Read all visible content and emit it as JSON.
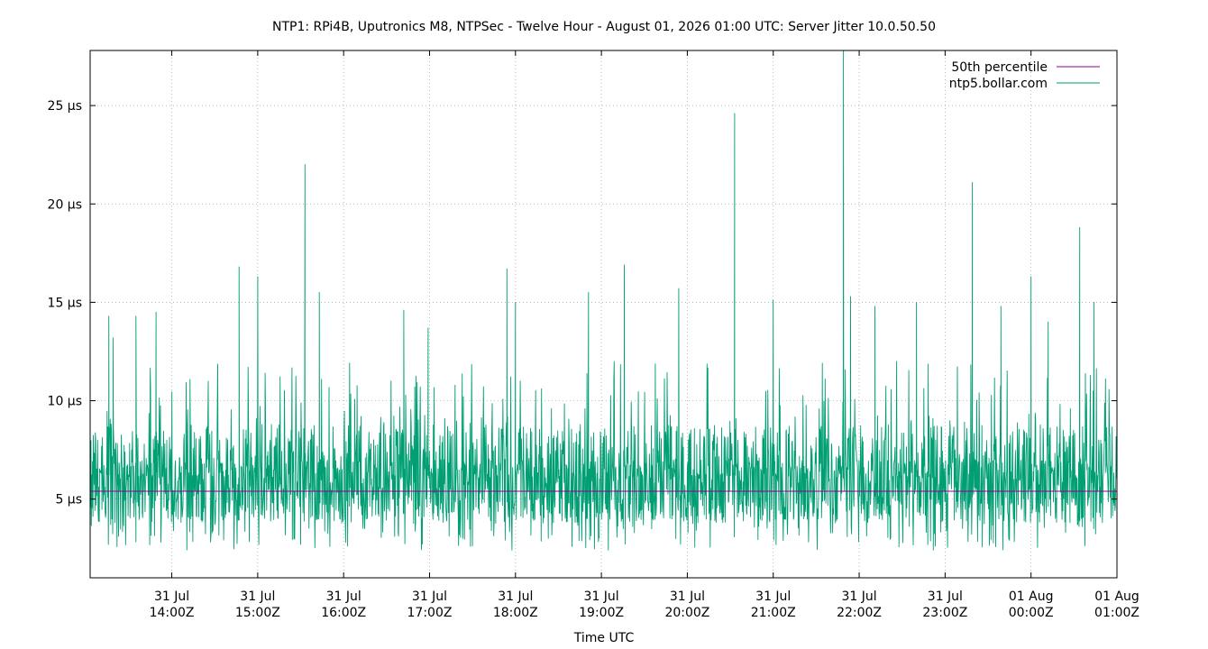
{
  "chart_data": {
    "type": "line",
    "title": "NTP1: RPi4B, Uputronics M8, NTPSec - Twelve Hour - August 01, 2026 01:00 UTC: Server Jitter 10.0.50.50",
    "xlabel": "Time UTC",
    "ylabel": "",
    "ylim": [
      1,
      27.8
    ],
    "xlim": [
      "2026-07-31T13:03Z",
      "2026-08-01T01:00Z"
    ],
    "grid": true,
    "legend_position": "top-right",
    "y_ticks": [
      "5 µs",
      "10 µs",
      "15 µs",
      "20 µs",
      "25 µs"
    ],
    "x_ticks": [
      {
        "date": "31 Jul",
        "time": "14:00Z"
      },
      {
        "date": "31 Jul",
        "time": "15:00Z"
      },
      {
        "date": "31 Jul",
        "time": "16:00Z"
      },
      {
        "date": "31 Jul",
        "time": "17:00Z"
      },
      {
        "date": "31 Jul",
        "time": "18:00Z"
      },
      {
        "date": "31 Jul",
        "time": "19:00Z"
      },
      {
        "date": "31 Jul",
        "time": "20:00Z"
      },
      {
        "date": "31 Jul",
        "time": "21:00Z"
      },
      {
        "date": "31 Jul",
        "time": "22:00Z"
      },
      {
        "date": "31 Jul",
        "time": "23:00Z"
      },
      {
        "date": "01 Aug",
        "time": "00:00Z"
      },
      {
        "date": "01 Aug",
        "time": "01:00Z"
      }
    ],
    "series": [
      {
        "name": "50th percentile",
        "color": "#8b008b",
        "value_us": 5.4
      },
      {
        "name": "ntp5.bollar.com",
        "color": "#009e73",
        "unit": "µs",
        "baseline_us": 5.4,
        "noise_range_us": [
          1.0,
          12.0
        ],
        "spikes": [
          {
            "time": "2026-07-31T13:16Z",
            "value_us": 14.3
          },
          {
            "time": "2026-07-31T13:19Z",
            "value_us": 13.2
          },
          {
            "time": "2026-07-31T13:35Z",
            "value_us": 14.3
          },
          {
            "time": "2026-07-31T13:49Z",
            "value_us": 14.5
          },
          {
            "time": "2026-07-31T14:47Z",
            "value_us": 16.8
          },
          {
            "time": "2026-07-31T15:00Z",
            "value_us": 16.3
          },
          {
            "time": "2026-07-31T15:33Z",
            "value_us": 22.0
          },
          {
            "time": "2026-07-31T15:43Z",
            "value_us": 15.5
          },
          {
            "time": "2026-07-31T16:42Z",
            "value_us": 14.6
          },
          {
            "time": "2026-07-31T16:59Z",
            "value_us": 13.7
          },
          {
            "time": "2026-07-31T17:54Z",
            "value_us": 16.7
          },
          {
            "time": "2026-07-31T18:00Z",
            "value_us": 15.0
          },
          {
            "time": "2026-07-31T18:51Z",
            "value_us": 15.5
          },
          {
            "time": "2026-07-31T19:16Z",
            "value_us": 16.9
          },
          {
            "time": "2026-07-31T19:54Z",
            "value_us": 15.7
          },
          {
            "time": "2026-07-31T20:33Z",
            "value_us": 24.6
          },
          {
            "time": "2026-07-31T21:00Z",
            "value_us": 15.1
          },
          {
            "time": "2026-07-31T21:49Z",
            "value_us": 27.8
          },
          {
            "time": "2026-07-31T21:54Z",
            "value_us": 15.3
          },
          {
            "time": "2026-07-31T22:11Z",
            "value_us": 14.8
          },
          {
            "time": "2026-07-31T22:40Z",
            "value_us": 15.0
          },
          {
            "time": "2026-07-31T23:19Z",
            "value_us": 21.1
          },
          {
            "time": "2026-07-31T23:39Z",
            "value_us": 14.8
          },
          {
            "time": "2026-08-01T00:00Z",
            "value_us": 16.3
          },
          {
            "time": "2026-08-01T00:12Z",
            "value_us": 14.0
          },
          {
            "time": "2026-08-01T00:34Z",
            "value_us": 18.8
          },
          {
            "time": "2026-08-01T00:44Z",
            "value_us": 15.0
          }
        ]
      }
    ]
  }
}
